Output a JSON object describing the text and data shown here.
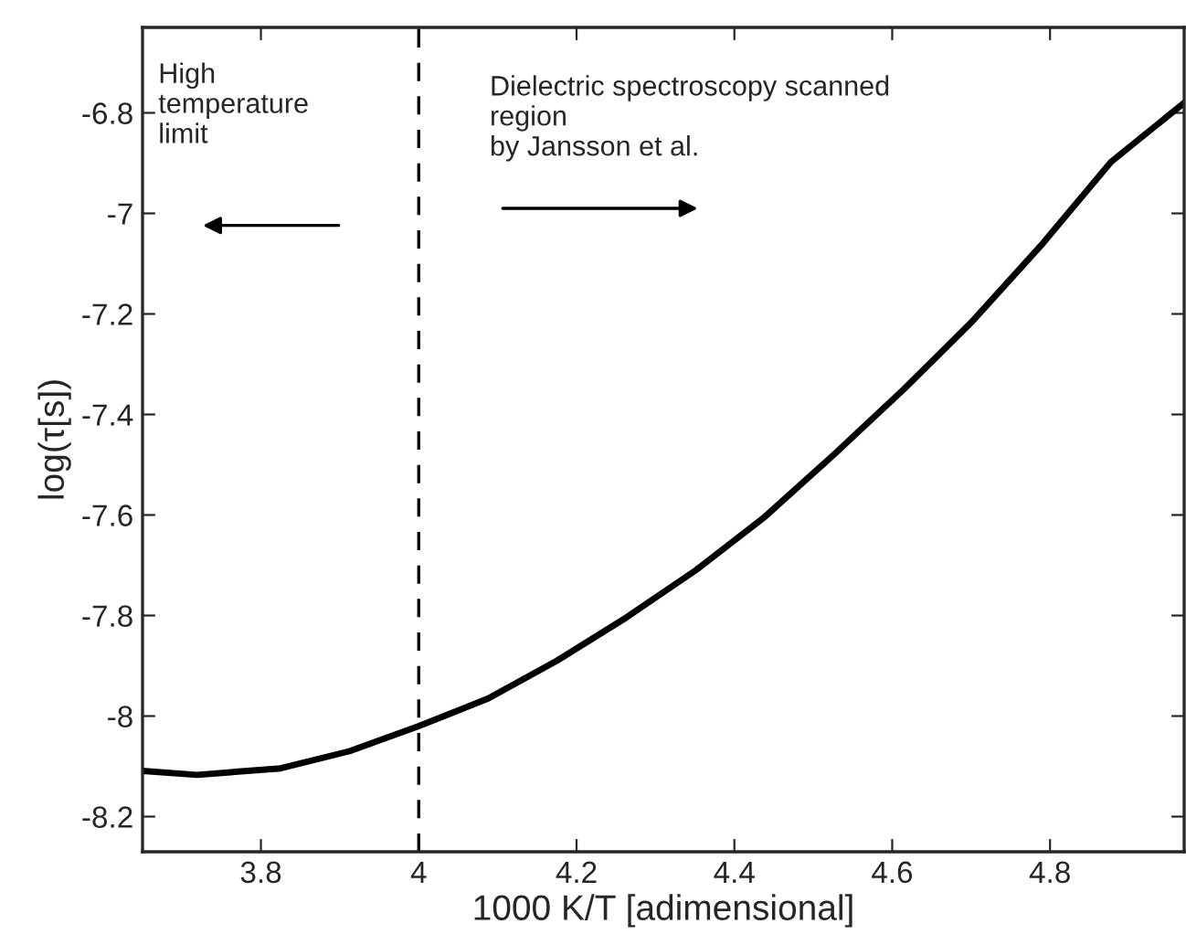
{
  "chart_data": {
    "type": "line",
    "xlabel": "1000 K/T [adimensional]",
    "ylabel": "log(τ[s])",
    "x": [
      3.65,
      3.719,
      3.825,
      3.912,
      4.0,
      4.088,
      4.175,
      4.263,
      4.351,
      4.439,
      4.526,
      4.614,
      4.702,
      4.789,
      4.877,
      4.97
    ],
    "series": [
      {
        "color": "#000000",
        "values": [
          -8.109,
          -8.117,
          -8.104,
          -8.07,
          -8.02,
          -7.965,
          -7.89,
          -7.804,
          -7.71,
          -7.603,
          -7.48,
          -7.351,
          -7.214,
          -7.063,
          -6.898,
          -6.78
        ]
      }
    ],
    "xlim": [
      3.65,
      4.97
    ],
    "ylim": [
      -8.27,
      -6.63
    ],
    "xticks": [
      3.8,
      4,
      4.2,
      4.4,
      4.6,
      4.8
    ],
    "yticks": [
      -8.2,
      -8,
      -7.8,
      -7.6,
      -7.4,
      -7.2,
      -7,
      -6.8
    ],
    "ref_lines": [
      {
        "axis": "x",
        "value": 4,
        "color": "#000000",
        "line_style": "dashed"
      }
    ],
    "annotations": [
      "High\ntemperature\nlimit",
      "Dielectric spectroscopy scanned\nregion\nby Jansson et al."
    ],
    "grid": false,
    "legend": false,
    "line_style": "solid",
    "marker": "none"
  }
}
